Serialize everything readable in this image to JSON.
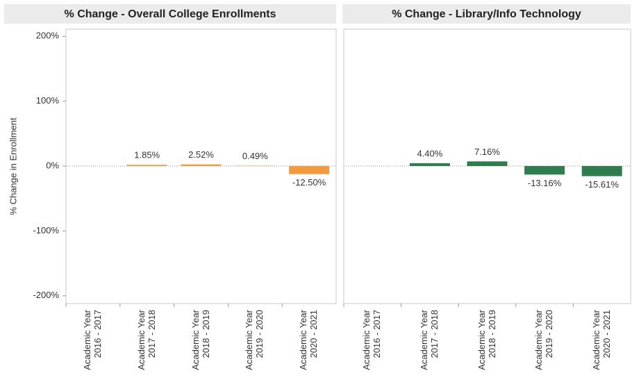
{
  "chart_data": [
    {
      "type": "bar",
      "title": "% Change - Overall College Enrollments",
      "y_label": "% Change in Enrollment",
      "categories": [
        "Academic Year 2016 - 2017",
        "Academic Year 2017 - 2018",
        "Academic Year 2018 - 2019",
        "Academic Year 2019 - 2020",
        "Academic Year 2020 - 2021"
      ],
      "values": [
        null,
        1.85,
        2.52,
        0.49,
        -12.5
      ],
      "value_labels": [
        null,
        "1.85%",
        "2.52%",
        "0.49%",
        "-12.50%"
      ],
      "color": "#f49a3e",
      "ylim": [
        -212,
        211
      ],
      "yticks": [
        {
          "value": 200,
          "label": "200%"
        },
        {
          "value": 100,
          "label": "100%"
        },
        {
          "value": 0,
          "label": "0%"
        },
        {
          "value": -100,
          "label": "-100%"
        },
        {
          "value": -200,
          "label": "-200%"
        }
      ]
    },
    {
      "type": "bar",
      "title": "% Change - Library/Info Technology",
      "categories": [
        "Academic Year 2016 - 2017",
        "Academic Year 2017 - 2018",
        "Academic Year 2018 - 2019",
        "Academic Year 2019 - 2020",
        "Academic Year 2020 - 2021"
      ],
      "values": [
        null,
        4.4,
        7.16,
        -13.16,
        -15.61
      ],
      "value_labels": [
        null,
        "4.40%",
        "7.16%",
        "-13.16%",
        "-15.61%"
      ],
      "color": "#2f7d4d",
      "ylim": [
        -212,
        211
      ]
    }
  ]
}
